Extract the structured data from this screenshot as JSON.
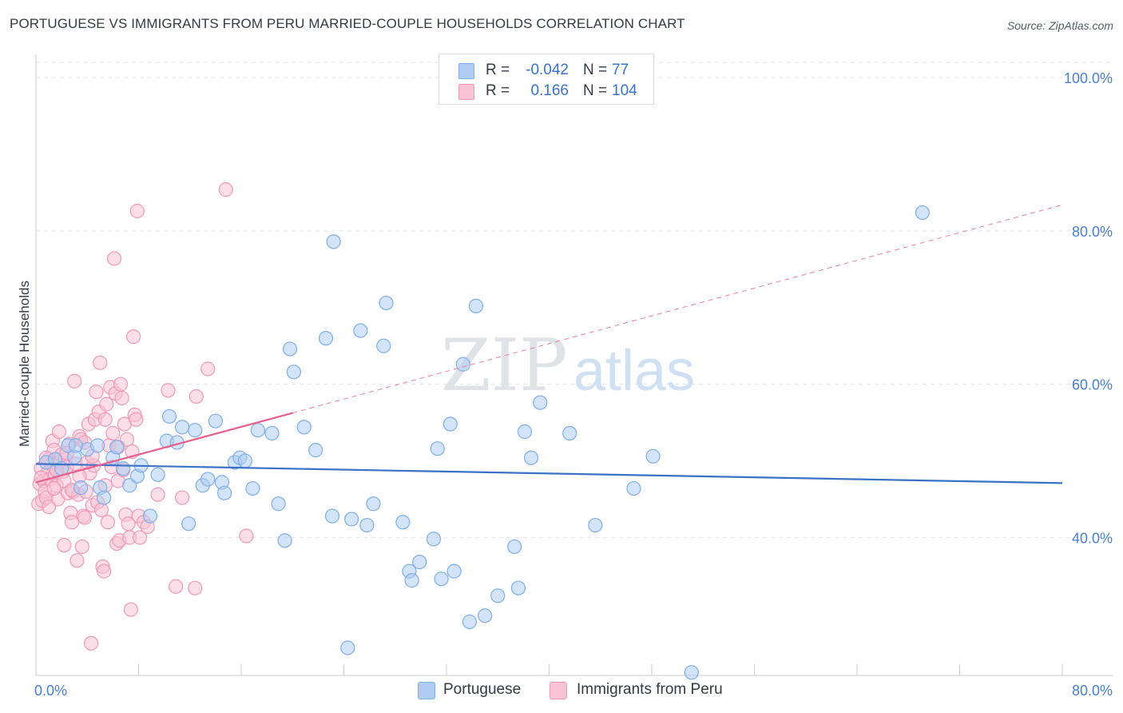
{
  "header": {
    "title": "PORTUGUESE VS IMMIGRANTS FROM PERU MARRIED-COUPLE HOUSEHOLDS CORRELATION CHART",
    "source": "Source: ZipAtlas.com"
  },
  "watermark": {
    "zip": "ZIP",
    "atlas": "atlas"
  },
  "legend": {
    "rows": [
      {
        "r_label": "R =",
        "r_value": "-0.042",
        "n_label": "N =",
        "n_value": "77",
        "swatch_color": "#aeccf2",
        "swatch_border": "#7faee6"
      },
      {
        "r_label": "R =",
        "r_value": "0.166",
        "n_label": "N =",
        "n_value": "104",
        "swatch_color": "#f8c3d4",
        "swatch_border": "#ee9ab6"
      }
    ]
  },
  "bottom_legend": {
    "items": [
      {
        "label": "Portuguese",
        "color": "#aeccf2",
        "border": "#7faee6"
      },
      {
        "label": "Immigrants from Peru",
        "color": "#f8c3d4",
        "border": "#ee9ab6"
      }
    ]
  },
  "chart_data": {
    "type": "scatter",
    "title": "PORTUGUESE VS IMMIGRANTS FROM PERU MARRIED-COUPLE HOUSEHOLDS CORRELATION CHART",
    "xlabel": "",
    "ylabel": "Married-couple Households",
    "xlim": [
      0,
      80
    ],
    "ylim": [
      22,
      102
    ],
    "x_ticks": [
      "0.0%",
      "80.0%"
    ],
    "y_ticks": [
      {
        "value": 40,
        "label": "40.0%"
      },
      {
        "value": 60,
        "label": "60.0%"
      },
      {
        "value": 80,
        "label": "80.0%"
      },
      {
        "value": 100,
        "label": "100.0%"
      }
    ],
    "grid": true,
    "legend_position": "top-center",
    "series": [
      {
        "name": "Portuguese",
        "color": "#7faee6",
        "fill": "#aeccf2",
        "line_color": "#3b72c8",
        "trend": {
          "x": [
            0,
            80
          ],
          "y": [
            49.6,
            47.1
          ],
          "solid_until": 80
        },
        "points": [
          [
            0.8,
            49.8
          ],
          [
            1.5,
            50.2
          ],
          [
            2.0,
            49.0
          ],
          [
            2.5,
            52.0
          ],
          [
            3.0,
            50.5
          ],
          [
            3.5,
            46.5
          ],
          [
            4.0,
            51.5
          ],
          [
            4.8,
            52.0
          ],
          [
            5.0,
            46.5
          ],
          [
            5.3,
            45.2
          ],
          [
            6.0,
            50.4
          ],
          [
            6.3,
            51.8
          ],
          [
            6.8,
            49.0
          ],
          [
            7.3,
            46.8
          ],
          [
            7.9,
            48.0
          ],
          [
            8.2,
            49.4
          ],
          [
            8.9,
            42.8
          ],
          [
            9.5,
            48.2
          ],
          [
            10.2,
            52.6
          ],
          [
            10.4,
            55.8
          ],
          [
            11.0,
            52.4
          ],
          [
            11.4,
            54.4
          ],
          [
            11.9,
            41.8
          ],
          [
            12.4,
            54.0
          ],
          [
            13.0,
            46.8
          ],
          [
            13.4,
            47.6
          ],
          [
            14.0,
            55.2
          ],
          [
            14.5,
            47.2
          ],
          [
            14.7,
            45.8
          ],
          [
            15.5,
            49.8
          ],
          [
            15.9,
            50.4
          ],
          [
            16.3,
            50.0
          ],
          [
            16.9,
            46.4
          ],
          [
            17.3,
            54.0
          ],
          [
            18.4,
            53.6
          ],
          [
            18.9,
            44.4
          ],
          [
            19.4,
            39.6
          ],
          [
            19.8,
            64.6
          ],
          [
            20.1,
            61.6
          ],
          [
            20.9,
            54.4
          ],
          [
            21.8,
            51.4
          ],
          [
            22.6,
            66.0
          ],
          [
            23.1,
            42.8
          ],
          [
            23.2,
            78.6
          ],
          [
            24.6,
            42.4
          ],
          [
            25.3,
            67.0
          ],
          [
            25.8,
            41.6
          ],
          [
            26.3,
            44.4
          ],
          [
            27.1,
            65.0
          ],
          [
            27.3,
            70.6
          ],
          [
            28.6,
            42.0
          ],
          [
            29.1,
            35.6
          ],
          [
            29.3,
            34.4
          ],
          [
            29.9,
            36.8
          ],
          [
            31.0,
            39.8
          ],
          [
            31.3,
            51.6
          ],
          [
            31.6,
            34.6
          ],
          [
            32.3,
            54.8
          ],
          [
            32.6,
            35.6
          ],
          [
            33.3,
            62.6
          ],
          [
            33.8,
            29.0
          ],
          [
            34.3,
            70.2
          ],
          [
            35.0,
            29.8
          ],
          [
            36.0,
            32.4
          ],
          [
            37.3,
            38.8
          ],
          [
            37.6,
            33.4
          ],
          [
            38.1,
            53.8
          ],
          [
            38.6,
            50.4
          ],
          [
            39.3,
            57.6
          ],
          [
            41.6,
            53.6
          ],
          [
            43.6,
            41.6
          ],
          [
            46.6,
            46.4
          ],
          [
            48.1,
            50.6
          ],
          [
            51.1,
            22.4
          ],
          [
            69.1,
            82.4
          ],
          [
            24.3,
            25.6
          ],
          [
            3.1,
            52.0
          ]
        ]
      },
      {
        "name": "Immigrants from Peru",
        "color": "#ee9ab6",
        "fill": "#f8c3d4",
        "line_color": "#e8608e",
        "trend": {
          "x": [
            0,
            80
          ],
          "y": [
            47.2,
            83.4
          ],
          "solid_until": 20
        },
        "points": [
          [
            0.2,
            44.4
          ],
          [
            0.3,
            47.0
          ],
          [
            0.4,
            49.0
          ],
          [
            0.5,
            44.8
          ],
          [
            0.6,
            47.4
          ],
          [
            0.7,
            46.0
          ],
          [
            0.8,
            45.2
          ],
          [
            0.9,
            48.4
          ],
          [
            1.0,
            50.2
          ],
          [
            1.1,
            47.6
          ],
          [
            1.2,
            49.6
          ],
          [
            1.3,
            52.6
          ],
          [
            1.4,
            51.4
          ],
          [
            1.5,
            48.2
          ],
          [
            1.6,
            46.8
          ],
          [
            1.7,
            45.0
          ],
          [
            1.8,
            53.8
          ],
          [
            1.9,
            49.8
          ],
          [
            2.0,
            50.8
          ],
          [
            2.1,
            48.6
          ],
          [
            2.2,
            47.4
          ],
          [
            2.3,
            50.2
          ],
          [
            2.4,
            49.2
          ],
          [
            2.5,
            45.8
          ],
          [
            2.6,
            52.2
          ],
          [
            2.7,
            43.2
          ],
          [
            2.8,
            42.0
          ],
          [
            2.9,
            46.0
          ],
          [
            3.0,
            60.4
          ],
          [
            3.1,
            49.6
          ],
          [
            3.2,
            37.0
          ],
          [
            3.3,
            45.6
          ],
          [
            3.4,
            53.2
          ],
          [
            3.5,
            52.8
          ],
          [
            3.6,
            38.8
          ],
          [
            3.7,
            42.8
          ],
          [
            3.8,
            52.4
          ],
          [
            3.9,
            46.0
          ],
          [
            4.0,
            49.8
          ],
          [
            4.1,
            54.8
          ],
          [
            4.2,
            48.4
          ],
          [
            4.3,
            26.2
          ],
          [
            4.4,
            44.2
          ],
          [
            4.5,
            49.4
          ],
          [
            4.6,
            55.4
          ],
          [
            4.7,
            59.0
          ],
          [
            4.8,
            44.6
          ],
          [
            4.9,
            56.4
          ],
          [
            5.0,
            62.8
          ],
          [
            5.1,
            43.6
          ],
          [
            5.2,
            36.2
          ],
          [
            5.3,
            35.6
          ],
          [
            5.4,
            55.4
          ],
          [
            5.5,
            57.4
          ],
          [
            5.6,
            42.0
          ],
          [
            5.7,
            52.0
          ],
          [
            5.8,
            59.6
          ],
          [
            5.9,
            49.2
          ],
          [
            6.0,
            53.6
          ],
          [
            6.1,
            76.4
          ],
          [
            6.2,
            58.8
          ],
          [
            6.3,
            39.2
          ],
          [
            6.4,
            47.4
          ],
          [
            6.5,
            39.6
          ],
          [
            6.6,
            60.0
          ],
          [
            6.7,
            58.2
          ],
          [
            6.8,
            48.8
          ],
          [
            6.9,
            54.8
          ],
          [
            7.0,
            43.0
          ],
          [
            7.1,
            52.8
          ],
          [
            7.2,
            41.8
          ],
          [
            7.3,
            40.0
          ],
          [
            7.4,
            30.6
          ],
          [
            7.5,
            51.2
          ],
          [
            7.6,
            66.2
          ],
          [
            7.7,
            56.0
          ],
          [
            7.8,
            55.4
          ],
          [
            7.9,
            82.6
          ],
          [
            8.0,
            42.8
          ],
          [
            8.1,
            40.0
          ],
          [
            8.4,
            42.0
          ],
          [
            8.7,
            41.4
          ],
          [
            9.5,
            45.6
          ],
          [
            10.3,
            59.2
          ],
          [
            10.9,
            33.6
          ],
          [
            11.4,
            45.2
          ],
          [
            12.4,
            33.4
          ],
          [
            12.5,
            58.4
          ],
          [
            13.4,
            62.0
          ],
          [
            14.8,
            85.4
          ],
          [
            16.4,
            40.2
          ],
          [
            1.4,
            46.4
          ],
          [
            2.2,
            39.0
          ],
          [
            3.8,
            42.6
          ],
          [
            0.8,
            50.4
          ],
          [
            1.6,
            48.8
          ],
          [
            2.4,
            51.0
          ],
          [
            0.4,
            47.8
          ],
          [
            1.0,
            44.0
          ],
          [
            2.8,
            46.2
          ],
          [
            3.4,
            48.0
          ],
          [
            4.4,
            50.6
          ],
          [
            5.4,
            46.8
          ],
          [
            6.4,
            51.8
          ]
        ]
      }
    ]
  }
}
